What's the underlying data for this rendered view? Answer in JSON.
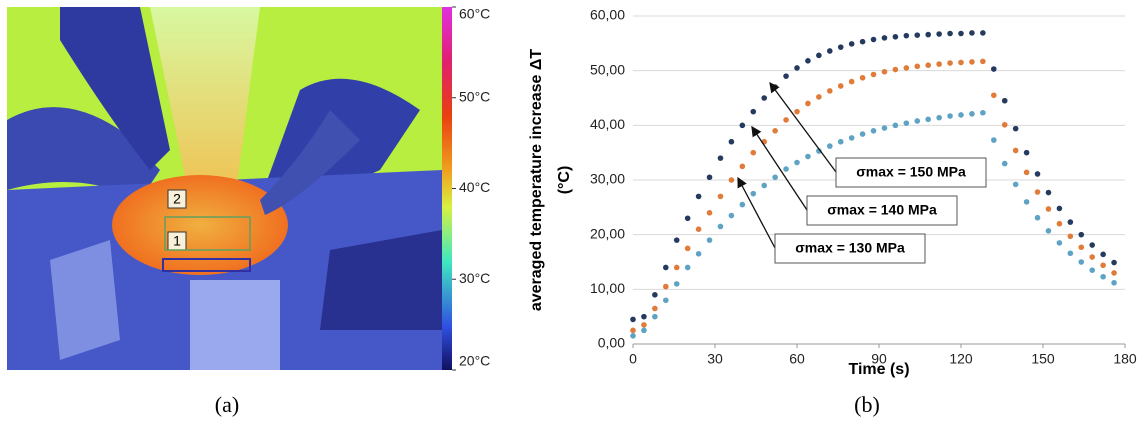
{
  "thermal_image": {
    "colorbar_ticks": [
      {
        "value": 60,
        "label": "60°C"
      },
      {
        "value": 50,
        "label": "50°C"
      },
      {
        "value": 40,
        "label": "40°C"
      },
      {
        "value": 30,
        "label": "30°C"
      },
      {
        "value": 20,
        "label": "20°C"
      }
    ],
    "colorbar_lim": [
      20,
      60
    ],
    "region_labels": [
      "2",
      "1"
    ],
    "caption": "(a)"
  },
  "chart_data": {
    "type": "scatter",
    "x_label": "Time (s)",
    "y_label": [
      "averaged temperature increase ΔT",
      "(°C)"
    ],
    "caption": "(b)",
    "x": [
      0,
      4,
      8,
      12,
      16,
      20,
      24,
      28,
      32,
      36,
      40,
      44,
      48,
      52,
      56,
      60,
      64,
      68,
      72,
      76,
      80,
      84,
      88,
      92,
      96,
      100,
      104,
      108,
      112,
      116,
      120,
      124,
      128,
      132,
      136,
      140,
      144,
      148,
      152,
      156,
      160,
      164,
      168,
      172,
      176
    ],
    "series": [
      {
        "name": "σmax = 150 MPa",
        "color": "#243a5e",
        "values": [
          4.5,
          5,
          9,
          14,
          19,
          23,
          27,
          30.5,
          34,
          37,
          40,
          42.5,
          45,
          47,
          49,
          50.5,
          51.8,
          52.8,
          53.6,
          54.3,
          54.9,
          55.3,
          55.7,
          56,
          56.2,
          56.4,
          56.5,
          56.6,
          56.7,
          56.8,
          56.8,
          56.9,
          56.9,
          50.3,
          44.5,
          39.4,
          35,
          31.1,
          27.7,
          24.8,
          22.3,
          20,
          18.1,
          16.4,
          14.9
        ]
      },
      {
        "name": "σmax = 140 MPa",
        "color": "#e07b39",
        "values": [
          2.5,
          3.5,
          6.5,
          10.5,
          14,
          17.5,
          21,
          24,
          27,
          30,
          32.5,
          35,
          37,
          39,
          41,
          42.5,
          44,
          45.2,
          46.3,
          47.2,
          48,
          48.7,
          49.3,
          49.8,
          50.2,
          50.5,
          50.8,
          51,
          51.2,
          51.4,
          51.5,
          51.6,
          51.7,
          45.5,
          40.1,
          35.4,
          31.4,
          27.8,
          24.7,
          22,
          19.7,
          17.7,
          15.9,
          14.4,
          13
        ]
      },
      {
        "name": "σmax = 130 MPa",
        "color": "#5ea3c3",
        "values": [
          1.5,
          2.5,
          5,
          8,
          11,
          14,
          16.5,
          19,
          21.5,
          23.5,
          25.5,
          27.5,
          29,
          30.5,
          32,
          33.2,
          34.3,
          35.3,
          36.2,
          37,
          37.7,
          38.4,
          39,
          39.5,
          40,
          40.4,
          40.8,
          41.1,
          41.4,
          41.7,
          41.9,
          42.1,
          42.3,
          37.3,
          33,
          29.2,
          26,
          23.1,
          20.7,
          18.5,
          16.6,
          15,
          13.5,
          12.3,
          11.2
        ]
      }
    ],
    "xlim": [
      0,
      180
    ],
    "xticks": [
      0,
      30,
      60,
      90,
      120,
      150,
      180
    ],
    "ylim": [
      0,
      60
    ],
    "yticks": [
      {
        "value": 0,
        "label": "0,00"
      },
      {
        "value": 10,
        "label": "10,00"
      },
      {
        "value": 20,
        "label": "20,00"
      },
      {
        "value": 30,
        "label": "30,00"
      },
      {
        "value": 40,
        "label": "40,00"
      },
      {
        "value": 50,
        "label": "50,00"
      },
      {
        "value": 60,
        "label": "60,00"
      }
    ],
    "grid": true
  }
}
